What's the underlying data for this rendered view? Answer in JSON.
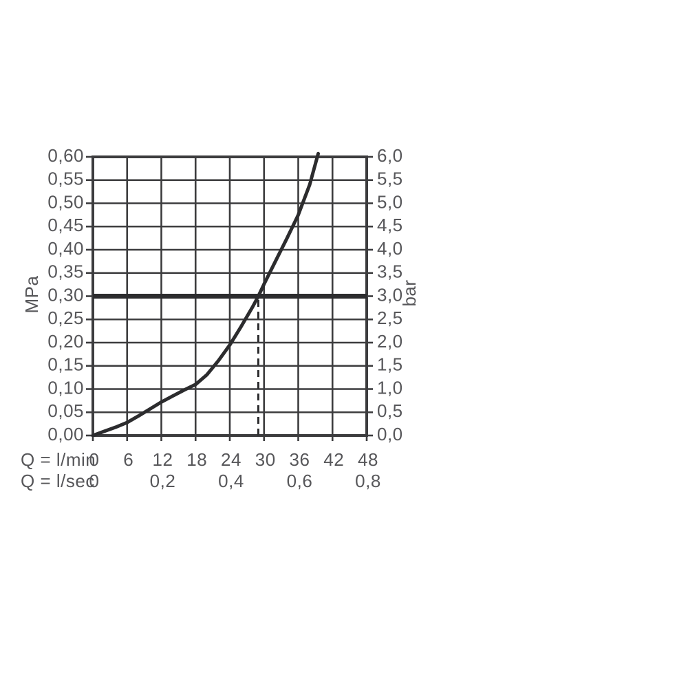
{
  "chart_data": {
    "type": "line",
    "title": "",
    "description": "Flow rate versus pressure diagram",
    "x_axis": {
      "label": "Q = l/min",
      "min": 0,
      "max": 48,
      "tick_values": [
        0,
        6,
        12,
        18,
        24,
        30,
        36,
        42,
        48
      ],
      "tick_labels": [
        "0",
        "6",
        "12",
        "18",
        "24",
        "30",
        "36",
        "42",
        "48"
      ]
    },
    "x_axis2": {
      "label": "Q = l/sec",
      "ticks": [
        {
          "label": "0",
          "lmin": 0
        },
        {
          "label": "0,2",
          "lmin": 12
        },
        {
          "label": "0,4",
          "lmin": 24
        },
        {
          "label": "0,6",
          "lmin": 36
        },
        {
          "label": "0,8",
          "lmin": 48
        }
      ]
    },
    "y_left": {
      "unit": "MPa",
      "min": 0,
      "max": 0.6,
      "step": 0.05,
      "tick_values_top_to_bottom": [
        0.6,
        0.55,
        0.5,
        0.45,
        0.4,
        0.35,
        0.3,
        0.25,
        0.2,
        0.15,
        0.1,
        0.05,
        0.0
      ],
      "tick_labels_top_to_bottom": [
        "0,60",
        "0,55",
        "0,50",
        "0,45",
        "0,40",
        "0,35",
        "0,30",
        "0,25",
        "0,20",
        "0,15",
        "0,10",
        "0,05",
        "0,00"
      ]
    },
    "y_right": {
      "unit": "bar",
      "min": 0,
      "max": 6.0,
      "step": 0.5,
      "tick_labels_top_to_bottom": [
        "6,0",
        "5,5",
        "5,0",
        "4,5",
        "4,0",
        "3,5",
        "3,0",
        "2,5",
        "2,0",
        "1,5",
        "1,0",
        "0,5",
        "0,0"
      ]
    },
    "series": [
      {
        "name": "flow-pressure-curve",
        "points_lmin_mpa": [
          [
            0,
            0.0
          ],
          [
            2,
            0.009
          ],
          [
            4,
            0.018
          ],
          [
            6,
            0.028
          ],
          [
            8,
            0.042
          ],
          [
            10,
            0.057
          ],
          [
            12,
            0.072
          ],
          [
            14,
            0.085
          ],
          [
            16,
            0.098
          ],
          [
            18,
            0.11
          ],
          [
            20,
            0.131
          ],
          [
            22,
            0.161
          ],
          [
            24,
            0.195
          ],
          [
            26,
            0.235
          ],
          [
            28,
            0.277
          ],
          [
            29,
            0.3
          ],
          [
            30,
            0.326
          ],
          [
            32,
            0.375
          ],
          [
            34,
            0.424
          ],
          [
            36,
            0.475
          ],
          [
            38,
            0.54
          ],
          [
            39.5,
            0.607
          ]
        ]
      }
    ],
    "reference_line": {
      "value_mpa": 0.3,
      "value_bar": 3.0
    },
    "dashed_marker": {
      "value_lmin": 29,
      "from_mpa": 0,
      "to_mpa": 0.3
    },
    "grid": "on",
    "colors": {
      "grid": "#3c3c3e",
      "text": "#57575a",
      "curve": "#2c2c2e",
      "reference": "#2c2c2e",
      "background": "#ffffff"
    }
  }
}
